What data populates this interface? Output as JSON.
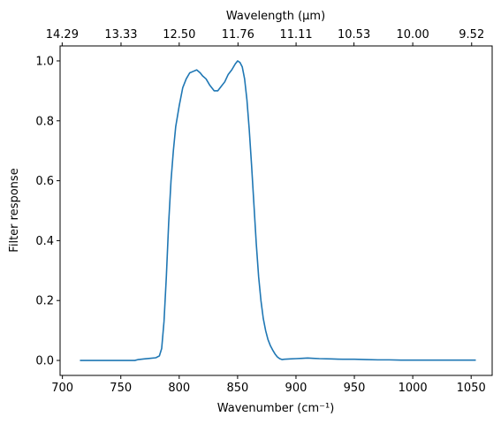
{
  "chart_data": {
    "type": "line",
    "title": "",
    "xlabel": "Wavenumber (cm⁻¹)",
    "ylabel": "Filter response",
    "top_xlabel": "Wavelength (μm)",
    "xlim": [
      698,
      1068
    ],
    "ylim": [
      -0.05,
      1.05
    ],
    "xticks": [
      700,
      750,
      800,
      850,
      900,
      950,
      1000,
      1050
    ],
    "xtick_labels": [
      "700",
      "750",
      "800",
      "850",
      "900",
      "950",
      "1000",
      "1050"
    ],
    "yticks": [
      0.0,
      0.2,
      0.4,
      0.6,
      0.8,
      1.0
    ],
    "ytick_labels": [
      "0.0",
      "0.2",
      "0.4",
      "0.6",
      "0.8",
      "1.0"
    ],
    "top_xticks": [
      14.29,
      13.33,
      12.5,
      11.76,
      11.11,
      10.53,
      10.0,
      9.52
    ],
    "top_xtick_labels": [
      "14.29",
      "13.33",
      "12.50",
      "11.76",
      "11.11",
      "10.53",
      "10.00",
      "9.52"
    ],
    "grid": false,
    "legend": "none",
    "series": [
      {
        "color": "#1f77b4",
        "x": [
          715,
          740,
          762,
          765,
          770,
          775,
          780,
          783,
          785,
          787,
          789,
          791,
          793,
          795,
          797,
          800,
          803,
          806,
          809,
          812,
          815,
          818,
          820,
          823,
          826,
          830,
          833,
          836,
          839,
          842,
          845,
          848,
          850,
          852,
          854,
          856,
          858,
          860,
          862,
          864,
          866,
          868,
          870,
          872,
          874,
          876,
          878,
          880,
          882,
          884,
          886,
          888,
          890,
          895,
          900,
          905,
          910,
          915,
          920,
          930,
          940,
          950,
          960,
          970,
          980,
          990,
          1000,
          1020,
          1040,
          1054
        ],
        "y": [
          0.0,
          0.0,
          0.0,
          0.003,
          0.005,
          0.007,
          0.009,
          0.015,
          0.04,
          0.13,
          0.28,
          0.46,
          0.6,
          0.7,
          0.78,
          0.85,
          0.91,
          0.94,
          0.96,
          0.965,
          0.97,
          0.96,
          0.95,
          0.94,
          0.92,
          0.9,
          0.9,
          0.915,
          0.93,
          0.955,
          0.97,
          0.99,
          1.0,
          0.995,
          0.98,
          0.94,
          0.87,
          0.77,
          0.65,
          0.52,
          0.39,
          0.28,
          0.2,
          0.14,
          0.1,
          0.07,
          0.05,
          0.035,
          0.022,
          0.012,
          0.006,
          0.003,
          0.004,
          0.005,
          0.006,
          0.007,
          0.008,
          0.007,
          0.006,
          0.005,
          0.004,
          0.004,
          0.003,
          0.002,
          0.002,
          0.001,
          0.001,
          0.001,
          0.001,
          0.001
        ]
      }
    ]
  }
}
